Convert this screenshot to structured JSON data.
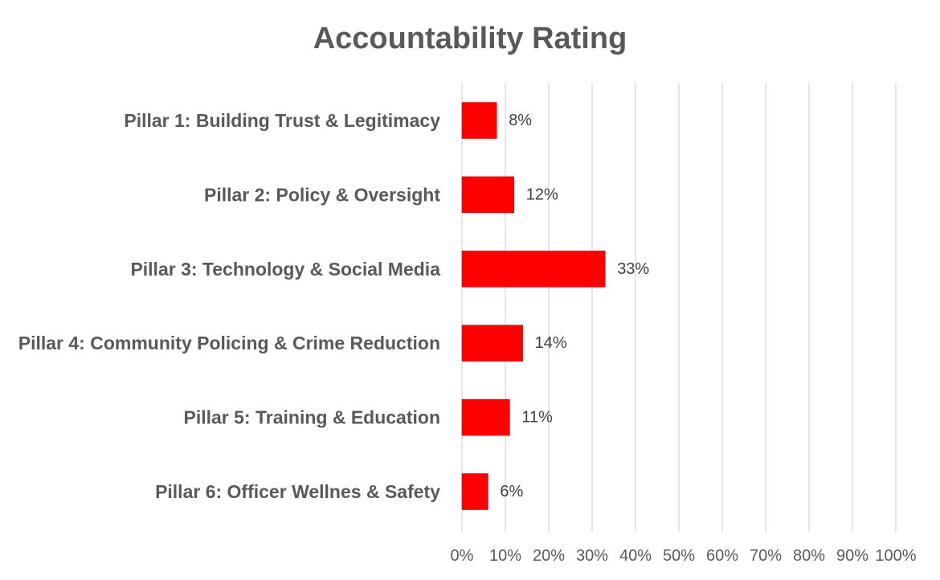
{
  "chart_data": {
    "type": "bar",
    "orientation": "horizontal",
    "title": "Accountability Rating",
    "categories": [
      "Pillar 1: Building Trust & Legitimacy",
      "Pillar 2: Policy & Oversight",
      "Pillar 3: Technology & Social Media",
      "Pillar 4: Community Policing & Crime Reduction",
      "Pillar 5: Training & Education",
      "Pillar 6: Officer Wellnes & Safety"
    ],
    "values": [
      8,
      12,
      33,
      14,
      11,
      6
    ],
    "data_labels": [
      "8%",
      "12%",
      "33%",
      "14%",
      "11%",
      "6%"
    ],
    "xlim": [
      0,
      100
    ],
    "x_ticks": [
      0,
      10,
      20,
      30,
      40,
      50,
      60,
      70,
      80,
      90,
      100
    ],
    "x_tick_labels": [
      "0%",
      "10%",
      "20%",
      "30%",
      "40%",
      "50%",
      "60%",
      "70%",
      "80%",
      "90%",
      "100%"
    ],
    "xlabel": "",
    "ylabel": "",
    "grid": "vertical",
    "legend": "none",
    "bar_color": "#ff0000"
  }
}
